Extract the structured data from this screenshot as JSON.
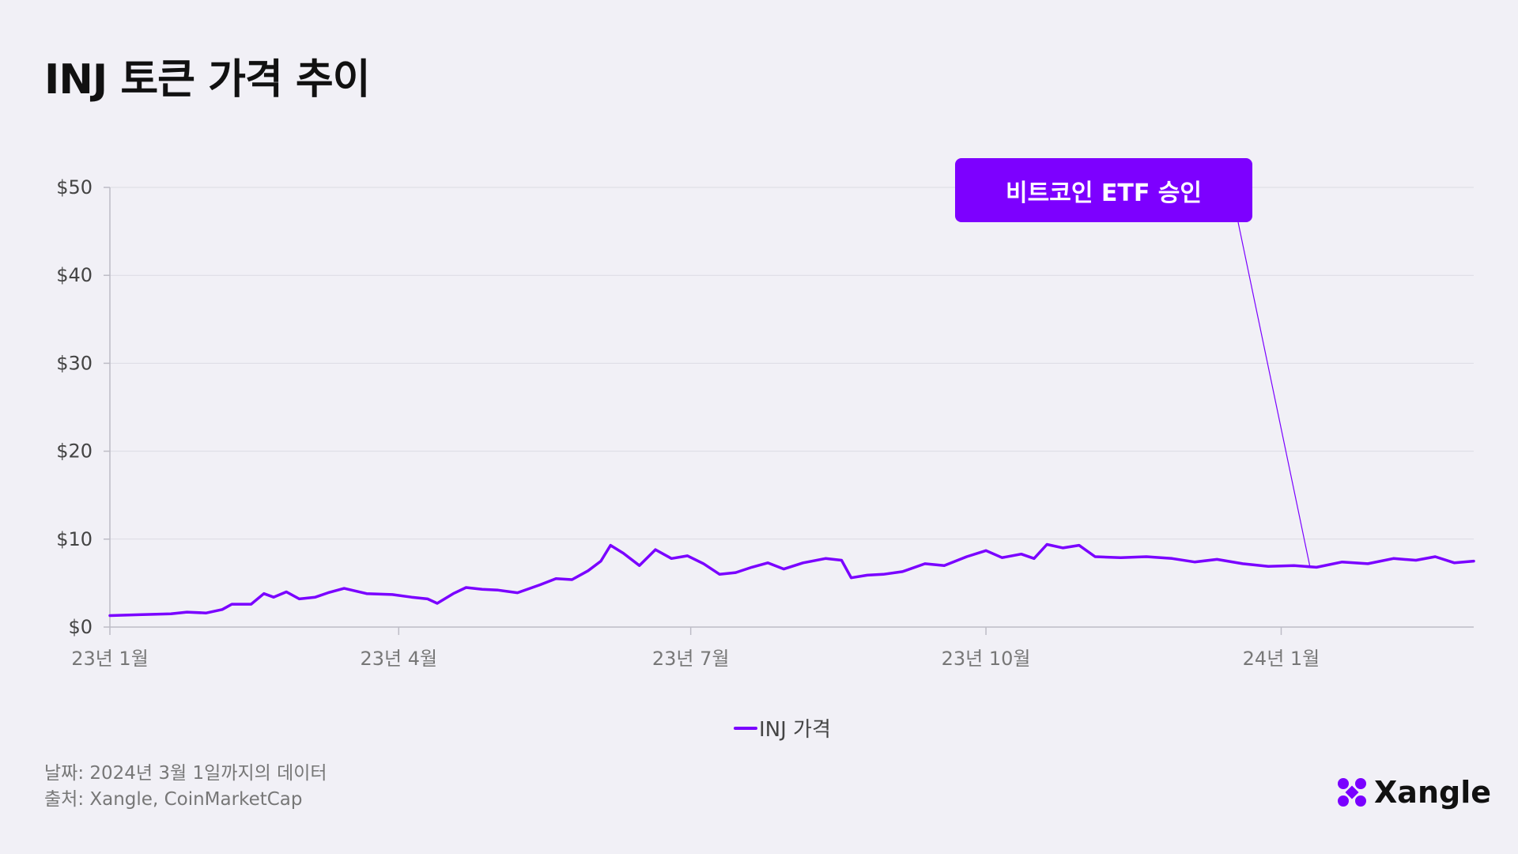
{
  "title": "INJ 토큰 가격 추이",
  "annotation": {
    "label": "비트코인 ETF 승인",
    "date": "2024-01-10"
  },
  "legend": {
    "label": "INJ 가격"
  },
  "footer": {
    "date_note": "날짜: 2024년 3월 1일까지의 데이터",
    "source": "출처: Xangle, CoinMarketCap"
  },
  "logo": {
    "text": "Xangle",
    "icon": "xangle-x-logo-icon"
  },
  "colors": {
    "line": "#7a00ff",
    "annotation_bg": "#7d00ff",
    "background": "#f1f0f6"
  },
  "chart_data": {
    "type": "line",
    "title": "INJ 토큰 가격 추이",
    "xlabel": "",
    "ylabel": "",
    "ylim": [
      0,
      50
    ],
    "y_ticks": [
      {
        "value": 0,
        "label": "$0"
      },
      {
        "value": 10,
        "label": "$10"
      },
      {
        "value": 20,
        "label": "$20"
      },
      {
        "value": 30,
        "label": "$30"
      },
      {
        "value": 40,
        "label": "$40"
      },
      {
        "value": 50,
        "label": "$50"
      }
    ],
    "x_ticks": [
      {
        "date": "2023-01-01",
        "label": "23년 1월"
      },
      {
        "date": "2023-04-01",
        "label": "23년 4월"
      },
      {
        "date": "2023-07-01",
        "label": "23년 7월"
      },
      {
        "date": "2023-10-01",
        "label": "23년 10월"
      },
      {
        "date": "2024-01-01",
        "label": "24년 1월"
      }
    ],
    "xlim": [
      "2023-01-01",
      "2024-03-01"
    ],
    "grid": true,
    "legend_position": "bottom-center",
    "series": [
      {
        "name": "INJ 가격",
        "points": [
          [
            "2023-01-01",
            1.3
          ],
          [
            "2023-01-10",
            1.4
          ],
          [
            "2023-01-20",
            1.5
          ],
          [
            "2023-01-25",
            1.7
          ],
          [
            "2023-01-31",
            1.6
          ],
          [
            "2023-02-05",
            2.0
          ],
          [
            "2023-02-08",
            2.6
          ],
          [
            "2023-02-14",
            2.6
          ],
          [
            "2023-02-18",
            3.8
          ],
          [
            "2023-02-21",
            3.4
          ],
          [
            "2023-02-25",
            4.0
          ],
          [
            "2023-03-01",
            3.2
          ],
          [
            "2023-03-06",
            3.4
          ],
          [
            "2023-03-10",
            3.9
          ],
          [
            "2023-03-15",
            4.4
          ],
          [
            "2023-03-22",
            3.8
          ],
          [
            "2023-03-30",
            3.7
          ],
          [
            "2023-04-05",
            3.4
          ],
          [
            "2023-04-10",
            3.2
          ],
          [
            "2023-04-13",
            2.7
          ],
          [
            "2023-04-18",
            3.8
          ],
          [
            "2023-04-22",
            4.5
          ],
          [
            "2023-04-27",
            4.3
          ],
          [
            "2023-05-02",
            4.2
          ],
          [
            "2023-05-08",
            3.9
          ],
          [
            "2023-05-15",
            4.8
          ],
          [
            "2023-05-20",
            5.5
          ],
          [
            "2023-05-25",
            5.4
          ],
          [
            "2023-05-30",
            6.4
          ],
          [
            "2023-06-03",
            7.5
          ],
          [
            "2023-06-06",
            9.3
          ],
          [
            "2023-06-10",
            8.4
          ],
          [
            "2023-06-15",
            7.0
          ],
          [
            "2023-06-20",
            8.8
          ],
          [
            "2023-06-25",
            7.8
          ],
          [
            "2023-06-30",
            8.1
          ],
          [
            "2023-07-05",
            7.2
          ],
          [
            "2023-07-10",
            6.0
          ],
          [
            "2023-07-15",
            6.2
          ],
          [
            "2023-07-20",
            6.8
          ],
          [
            "2023-07-25",
            7.3
          ],
          [
            "2023-07-30",
            6.6
          ],
          [
            "2023-08-05",
            7.3
          ],
          [
            "2023-08-12",
            7.8
          ],
          [
            "2023-08-17",
            7.6
          ],
          [
            "2023-08-20",
            5.6
          ],
          [
            "2023-08-25",
            5.9
          ],
          [
            "2023-08-30",
            6.0
          ],
          [
            "2023-09-05",
            6.3
          ],
          [
            "2023-09-12",
            7.2
          ],
          [
            "2023-09-18",
            7.0
          ],
          [
            "2023-09-25",
            8.0
          ],
          [
            "2023-10-01",
            8.7
          ],
          [
            "2023-10-06",
            7.9
          ],
          [
            "2023-10-12",
            8.3
          ],
          [
            "2023-10-16",
            7.8
          ],
          [
            "2023-10-20",
            9.4
          ],
          [
            "2023-10-25",
            9.0
          ],
          [
            "2023-10-30",
            9.3
          ],
          [
            "2023-11-04",
            8.0
          ],
          [
            "2023-11-12",
            7.9
          ],
          [
            "2023-11-20",
            8.0
          ],
          [
            "2023-11-28",
            7.8
          ],
          [
            "2023-12-05",
            7.4
          ],
          [
            "2023-12-12",
            7.7
          ],
          [
            "2023-12-20",
            7.2
          ],
          [
            "2023-12-28",
            6.9
          ],
          [
            "2024-01-05",
            7.0
          ],
          [
            "2024-01-12",
            6.8
          ],
          [
            "2024-01-20",
            7.4
          ],
          [
            "2024-01-28",
            7.2
          ],
          [
            "2024-02-05",
            7.8
          ],
          [
            "2024-02-12",
            7.6
          ],
          [
            "2024-02-18",
            8.0
          ],
          [
            "2024-02-24",
            7.3
          ],
          [
            "2024-03-01",
            7.5
          ]
        ]
      }
    ]
  }
}
